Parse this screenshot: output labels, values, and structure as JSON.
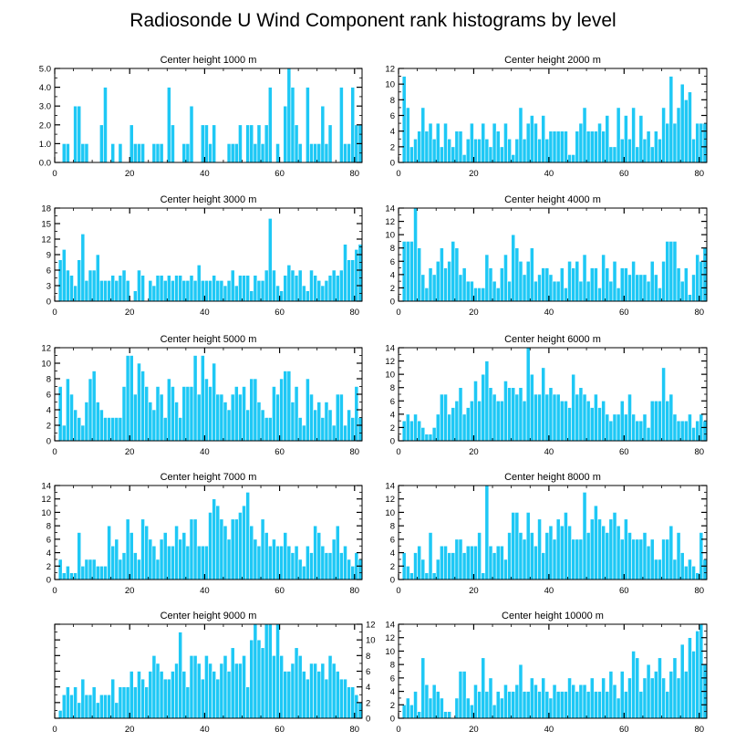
{
  "title": "Radiosonde U Wind Component rank histograms by level",
  "colors": {
    "bar": "#1ec8f5",
    "background": "#ffffff",
    "axis": "#000000"
  },
  "chart_data": [
    {
      "type": "bar",
      "title": "Center height 1000 m",
      "xlim": [
        0,
        82
      ],
      "ylim": [
        0,
        5
      ],
      "xticks": [
        0,
        20,
        40,
        60,
        80
      ],
      "xtick_labels": [
        "0",
        "20",
        "40",
        "60",
        "80"
      ],
      "yticks": [
        0,
        1,
        2,
        3,
        4,
        5
      ],
      "ytick_labels": [
        "0.0",
        "1.0",
        "2.0",
        "3.0",
        "4.0",
        "5.0"
      ],
      "ytick_side": "left",
      "values": [
        0,
        0,
        1,
        1,
        0,
        3,
        3,
        1,
        1,
        0,
        0,
        0,
        2,
        4,
        0,
        1,
        0,
        1,
        0,
        0,
        2,
        1,
        1,
        1,
        0,
        0,
        1,
        1,
        1,
        0,
        4,
        2,
        0,
        0,
        1,
        1,
        3,
        0,
        0,
        2,
        2,
        1,
        2,
        0,
        0,
        0,
        1,
        1,
        1,
        2,
        0,
        2,
        2,
        1,
        2,
        1,
        2,
        4,
        0,
        1,
        0,
        3,
        5,
        4,
        2,
        1,
        0,
        4,
        1,
        1,
        1,
        3,
        1,
        2,
        0,
        0,
        4,
        1,
        1,
        4,
        2,
        2
      ]
    },
    {
      "type": "bar",
      "title": "Center height 2000 m",
      "xlim": [
        0,
        82
      ],
      "ylim": [
        0,
        12
      ],
      "xticks": [
        0,
        20,
        40,
        60,
        80
      ],
      "xtick_labels": [
        "0",
        "20",
        "40",
        "60",
        "80"
      ],
      "yticks": [
        0,
        2,
        4,
        6,
        8,
        10,
        12
      ],
      "ytick_labels": [
        "0",
        "2",
        "4",
        "6",
        "8",
        "10",
        "12"
      ],
      "ytick_side": "left",
      "values": [
        0,
        11,
        7,
        2,
        3,
        4,
        7,
        4,
        5,
        3,
        5,
        2,
        5,
        3,
        2,
        4,
        4,
        1,
        3,
        5,
        3,
        3,
        5,
        3,
        2,
        5,
        4,
        2,
        5,
        3,
        1,
        3,
        7,
        3,
        5,
        6,
        5,
        3,
        6,
        3,
        4,
        4,
        4,
        4,
        4,
        1,
        1,
        4,
        5,
        7,
        4,
        4,
        4,
        5,
        4,
        6,
        2,
        2,
        7,
        3,
        6,
        3,
        7,
        2,
        6,
        3,
        4,
        2,
        4,
        3,
        7,
        5,
        11,
        5,
        7,
        10,
        8,
        9,
        3,
        5,
        5,
        5
      ]
    },
    {
      "type": "bar",
      "title": "Center height 3000 m",
      "xlim": [
        0,
        82
      ],
      "ylim": [
        0,
        18
      ],
      "xticks": [
        0,
        20,
        40,
        60,
        80
      ],
      "xtick_labels": [
        "0",
        "20",
        "40",
        "60",
        "80"
      ],
      "yticks": [
        0,
        3,
        6,
        9,
        12,
        15,
        18
      ],
      "ytick_labels": [
        "0",
        "3",
        "6",
        "9",
        "12",
        "15",
        "18"
      ],
      "ytick_side": "left",
      "values": [
        0,
        8,
        10,
        6,
        5,
        3,
        8,
        13,
        4,
        6,
        6,
        9,
        4,
        4,
        4,
        5,
        4,
        5,
        6,
        4,
        0,
        2,
        6,
        5,
        0,
        4,
        3,
        5,
        5,
        4,
        5,
        4,
        5,
        5,
        4,
        4,
        5,
        4,
        7,
        4,
        4,
        4,
        5,
        4,
        4,
        3,
        4,
        6,
        3,
        5,
        5,
        5,
        2,
        5,
        4,
        4,
        6,
        16,
        6,
        3,
        2,
        5,
        7,
        6,
        5,
        6,
        3,
        2,
        6,
        5,
        4,
        3,
        4,
        5,
        6,
        5,
        6,
        11,
        8,
        8,
        10,
        11
      ]
    },
    {
      "type": "bar",
      "title": "Center height 4000 m",
      "xlim": [
        0,
        82
      ],
      "ylim": [
        0,
        14
      ],
      "xticks": [
        0,
        20,
        40,
        60,
        80
      ],
      "xtick_labels": [
        "0",
        "20",
        "40",
        "60",
        "80"
      ],
      "yticks": [
        0,
        2,
        4,
        6,
        8,
        10,
        12,
        14
      ],
      "ytick_labels": [
        "0",
        "2",
        "4",
        "6",
        "8",
        "10",
        "12",
        "14"
      ],
      "ytick_side": "left",
      "values": [
        0,
        9,
        9,
        9,
        14,
        8,
        4,
        2,
        5,
        4,
        6,
        8,
        5,
        6,
        9,
        8,
        4,
        5,
        3,
        3,
        2,
        2,
        2,
        7,
        5,
        3,
        2,
        5,
        7,
        3,
        10,
        8,
        6,
        4,
        6,
        8,
        3,
        4,
        5,
        5,
        4,
        3,
        3,
        5,
        2,
        6,
        5,
        6,
        3,
        7,
        3,
        5,
        5,
        2,
        7,
        5,
        3,
        6,
        2,
        5,
        5,
        4,
        6,
        4,
        4,
        4,
        3,
        6,
        4,
        2,
        6,
        9,
        9,
        9,
        5,
        3,
        5,
        1,
        4,
        7,
        6,
        8
      ]
    },
    {
      "type": "bar",
      "title": "Center height 5000 m",
      "xlim": [
        0,
        82
      ],
      "ylim": [
        0,
        12
      ],
      "xticks": [
        0,
        20,
        40,
        60,
        80
      ],
      "xtick_labels": [
        "0",
        "20",
        "40",
        "60",
        "80"
      ],
      "yticks": [
        0,
        2,
        4,
        6,
        8,
        10,
        12
      ],
      "ytick_labels": [
        "0",
        "2",
        "4",
        "6",
        "8",
        "10",
        "12"
      ],
      "ytick_side": "left",
      "values": [
        0,
        7,
        2,
        8,
        6,
        4,
        3,
        2,
        5,
        8,
        9,
        5,
        4,
        3,
        3,
        3,
        3,
        3,
        7,
        11,
        11,
        6,
        10,
        9,
        7,
        5,
        4,
        7,
        6,
        3,
        8,
        7,
        5,
        3,
        7,
        7,
        7,
        11,
        6,
        11,
        8,
        7,
        10,
        6,
        6,
        5,
        4,
        6,
        7,
        6,
        7,
        4,
        8,
        8,
        5,
        4,
        3,
        3,
        7,
        6,
        8,
        9,
        9,
        5,
        7,
        3,
        2,
        8,
        6,
        4,
        5,
        3,
        5,
        4,
        2,
        6,
        6,
        2,
        4,
        3,
        7,
        3
      ]
    },
    {
      "type": "bar",
      "title": "Center height 6000 m",
      "xlim": [
        0,
        82
      ],
      "ylim": [
        0,
        14
      ],
      "xticks": [
        0,
        20,
        40,
        60,
        80
      ],
      "xtick_labels": [
        "0",
        "20",
        "40",
        "60",
        "80"
      ],
      "yticks": [
        0,
        2,
        4,
        6,
        8,
        10,
        12,
        14
      ],
      "ytick_labels": [
        "0",
        "2",
        "4",
        "6",
        "8",
        "10",
        "12",
        "14"
      ],
      "ytick_side": "left",
      "values": [
        0,
        3,
        4,
        3,
        4,
        3,
        2,
        1,
        1,
        2,
        4,
        7,
        7,
        4,
        5,
        6,
        8,
        4,
        5,
        6,
        9,
        6,
        10,
        12,
        8,
        7,
        6,
        6,
        9,
        8,
        8,
        7,
        8,
        6,
        14,
        10,
        7,
        7,
        11,
        7,
        8,
        7,
        7,
        6,
        6,
        5,
        10,
        7,
        8,
        7,
        6,
        5,
        7,
        5,
        6,
        4,
        3,
        4,
        4,
        6,
        4,
        7,
        4,
        3,
        3,
        4,
        2,
        6,
        6,
        6,
        11,
        6,
        7,
        4,
        3,
        3,
        3,
        4,
        2,
        3,
        4,
        3
      ]
    },
    {
      "type": "bar",
      "title": "Center height 7000 m",
      "xlim": [
        0,
        82
      ],
      "ylim": [
        0,
        14
      ],
      "xticks": [
        0,
        20,
        40,
        60,
        80
      ],
      "xtick_labels": [
        "0",
        "20",
        "40",
        "60",
        "80"
      ],
      "yticks": [
        0,
        2,
        4,
        6,
        8,
        10,
        12,
        14
      ],
      "ytick_labels": [
        "0",
        "2",
        "4",
        "6",
        "8",
        "10",
        "12",
        "14"
      ],
      "ytick_side": "left",
      "values": [
        0,
        3,
        1,
        2,
        1,
        1,
        7,
        2,
        3,
        3,
        3,
        2,
        2,
        2,
        8,
        5,
        6,
        3,
        4,
        9,
        7,
        4,
        3,
        9,
        8,
        6,
        5,
        3,
        6,
        7,
        5,
        5,
        8,
        6,
        7,
        5,
        9,
        9,
        5,
        5,
        5,
        10,
        12,
        11,
        9,
        8,
        6,
        9,
        9,
        10,
        11,
        13,
        8,
        6,
        5,
        9,
        7,
        5,
        6,
        5,
        5,
        7,
        5,
        4,
        5,
        3,
        2,
        5,
        4,
        8,
        7,
        5,
        4,
        4,
        6,
        8,
        4,
        5,
        3,
        2,
        4,
        3
      ]
    },
    {
      "type": "bar",
      "title": "Center height 8000 m",
      "xlim": [
        0,
        82
      ],
      "ylim": [
        0,
        14
      ],
      "xticks": [
        0,
        20,
        40,
        60,
        80
      ],
      "xtick_labels": [
        "0",
        "20",
        "40",
        "60",
        "80"
      ],
      "yticks": [
        0,
        2,
        4,
        6,
        8,
        10,
        12,
        14
      ],
      "ytick_labels": [
        "0",
        "2",
        "4",
        "6",
        "8",
        "10",
        "12",
        "14"
      ],
      "ytick_side": "left",
      "values": [
        0,
        4,
        2,
        1,
        4,
        5,
        3,
        1,
        7,
        1,
        3,
        5,
        5,
        4,
        4,
        6,
        6,
        4,
        5,
        5,
        5,
        7,
        1,
        14,
        5,
        4,
        5,
        5,
        3,
        7,
        10,
        10,
        7,
        6,
        10,
        7,
        5,
        9,
        4,
        7,
        8,
        6,
        9,
        8,
        10,
        8,
        6,
        6,
        6,
        13,
        7,
        9,
        11,
        9,
        8,
        7,
        9,
        10,
        8,
        6,
        9,
        7,
        6,
        6,
        6,
        7,
        5,
        6,
        3,
        3,
        6,
        6,
        8,
        3,
        7,
        4,
        2,
        3,
        2,
        1,
        7,
        3
      ]
    },
    {
      "type": "bar",
      "title": "Center height 9000 m",
      "xlim": [
        0,
        82
      ],
      "ylim": [
        0,
        12
      ],
      "xticks": [
        0,
        20,
        40,
        60,
        80
      ],
      "xtick_labels": [
        "0",
        "20",
        "40",
        "60",
        "80"
      ],
      "yticks": [
        0,
        2,
        4,
        6,
        8,
        10,
        12
      ],
      "ytick_labels": [
        "0",
        "2",
        "4",
        "6",
        "8",
        "10",
        "12"
      ],
      "ytick_side": "right",
      "values": [
        0,
        1,
        3,
        4,
        3,
        4,
        2,
        5,
        3,
        3,
        4,
        2,
        3,
        3,
        3,
        5,
        2,
        4,
        4,
        4,
        6,
        4,
        6,
        5,
        4,
        6,
        8,
        7,
        6,
        5,
        5,
        6,
        7,
        11,
        6,
        4,
        8,
        8,
        7,
        5,
        8,
        7,
        6,
        5,
        7,
        8,
        6,
        9,
        7,
        7,
        8,
        4,
        10,
        12,
        10,
        9,
        12,
        12,
        8,
        12,
        8,
        6,
        6,
        7,
        9,
        8,
        6,
        5,
        7,
        7,
        6,
        7,
        5,
        8,
        7,
        6,
        5,
        5,
        4,
        4,
        3,
        2
      ]
    },
    {
      "type": "bar",
      "title": "Center height 10000 m",
      "xlim": [
        0,
        82
      ],
      "ylim": [
        0,
        14
      ],
      "xticks": [
        0,
        20,
        40,
        60,
        80
      ],
      "xtick_labels": [
        "0",
        "20",
        "40",
        "60",
        "80"
      ],
      "yticks": [
        0,
        2,
        4,
        6,
        8,
        10,
        12,
        14
      ],
      "ytick_labels": [
        "0",
        "2",
        "4",
        "6",
        "8",
        "10",
        "12",
        "14"
      ],
      "ytick_side": "left",
      "values": [
        0,
        2,
        3,
        2,
        4,
        1,
        9,
        5,
        3,
        5,
        4,
        3,
        1,
        1,
        0,
        3,
        7,
        7,
        3,
        2,
        5,
        4,
        9,
        4,
        6,
        2,
        4,
        3,
        5,
        4,
        4,
        5,
        8,
        4,
        4,
        6,
        5,
        4,
        6,
        4,
        3,
        5,
        4,
        4,
        4,
        6,
        5,
        4,
        5,
        5,
        4,
        6,
        4,
        4,
        6,
        4,
        7,
        5,
        3,
        7,
        4,
        6,
        10,
        9,
        4,
        6,
        8,
        6,
        7,
        9,
        6,
        4,
        7,
        9,
        6,
        11,
        7,
        12,
        10,
        13,
        14,
        8
      ]
    }
  ]
}
